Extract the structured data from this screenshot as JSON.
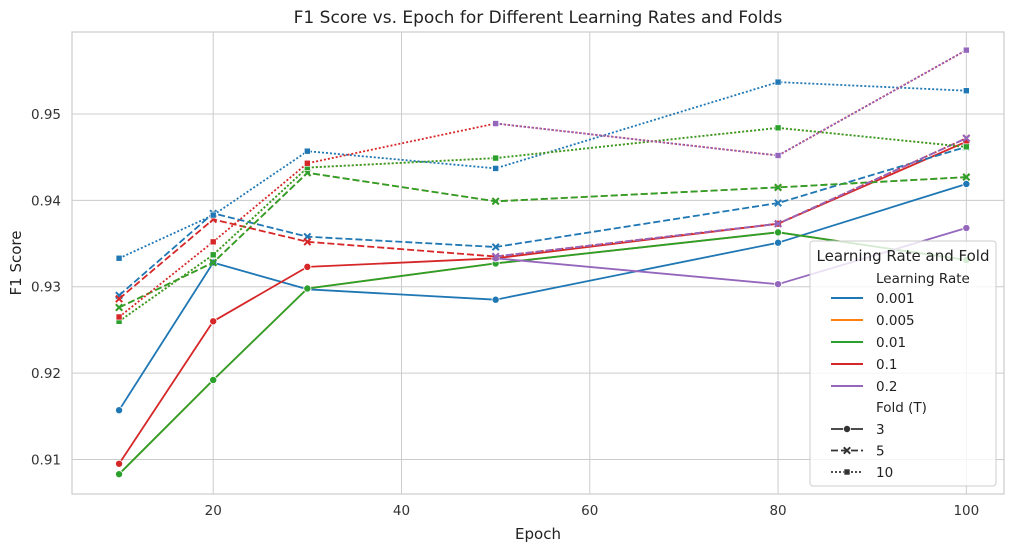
{
  "chart_data": {
    "type": "line",
    "title": "F1 Score vs. Epoch for Different Learning Rates and Folds",
    "xlabel": "Epoch",
    "ylabel": "F1 Score",
    "xlim": [
      5,
      104
    ],
    "ylim": [
      0.906,
      0.9595
    ],
    "xticks": [
      20,
      40,
      60,
      80,
      100
    ],
    "yticks": [
      0.91,
      0.92,
      0.93,
      0.94,
      0.95
    ],
    "grid": true,
    "x": [
      10,
      20,
      30,
      50,
      80,
      100
    ],
    "legend": {
      "title": "Learning Rate and Fold",
      "placement": "right",
      "hue_title": "Learning Rate",
      "style_title": "Fold (T)",
      "hue_entries": [
        {
          "label": "0.001",
          "color": "#1f77b4"
        },
        {
          "label": "0.005",
          "color": "#ff7f0e"
        },
        {
          "label": "0.01",
          "color": "#2ca02c"
        },
        {
          "label": "0.1",
          "color": "#d62728"
        },
        {
          "label": "0.2",
          "color": "#9467bd"
        }
      ],
      "style_entries": [
        {
          "label": "3",
          "dash": "solid",
          "marker": "circle"
        },
        {
          "label": "5",
          "dash": "dashed",
          "marker": "x"
        },
        {
          "label": "10",
          "dash": "dotted",
          "marker": "square"
        }
      ]
    },
    "series": [
      {
        "lr": "0.001",
        "fold": "3",
        "color": "#1f77b4",
        "dash": "solid",
        "marker": "circle",
        "values": [
          0.9157,
          0.9328,
          0.9297,
          0.9285,
          0.9351,
          0.9419
        ]
      },
      {
        "lr": "0.005",
        "fold": "3",
        "color": "#ff7f0e",
        "dash": "solid",
        "marker": "circle",
        "values": [
          0.9083,
          0.9192,
          0.9298,
          0.9327,
          0.9363,
          0.9331
        ]
      },
      {
        "lr": "0.01",
        "fold": "3",
        "color": "#2ca02c",
        "dash": "solid",
        "marker": "circle",
        "values": [
          0.9083,
          0.9192,
          0.9298,
          0.9327,
          0.9363,
          0.9331
        ]
      },
      {
        "lr": "0.1",
        "fold": "3",
        "color": "#d62728",
        "dash": "solid",
        "marker": "circle",
        "values": [
          0.9095,
          0.926,
          0.9323,
          0.9333,
          0.9373,
          0.9468
        ]
      },
      {
        "lr": "0.2",
        "fold": "3",
        "color": "#9467bd",
        "dash": "solid",
        "marker": "circle",
        "values": [
          null,
          null,
          null,
          0.9333,
          0.9303,
          0.9368
        ]
      },
      {
        "lr": "0.001",
        "fold": "5",
        "color": "#1f77b4",
        "dash": "dashed",
        "marker": "x",
        "values": [
          0.929,
          0.9385,
          0.9358,
          0.9346,
          0.9397,
          0.9462
        ]
      },
      {
        "lr": "0.005",
        "fold": "5",
        "color": "#ff7f0e",
        "dash": "dashed",
        "marker": "x",
        "values": [
          0.9276,
          0.9328,
          0.9432,
          0.9399,
          0.9415,
          0.9427
        ]
      },
      {
        "lr": "0.01",
        "fold": "5",
        "color": "#2ca02c",
        "dash": "dashed",
        "marker": "x",
        "values": [
          0.9276,
          0.9328,
          0.9432,
          0.9399,
          0.9415,
          0.9427
        ]
      },
      {
        "lr": "0.1",
        "fold": "5",
        "color": "#d62728",
        "dash": "dashed",
        "marker": "x",
        "values": [
          0.9286,
          0.9378,
          0.9352,
          0.9335,
          0.9373,
          0.9472
        ]
      },
      {
        "lr": "0.2",
        "fold": "5",
        "color": "#9467bd",
        "dash": "dashed",
        "marker": "x",
        "values": [
          null,
          null,
          null,
          0.9335,
          0.9373,
          0.9472
        ]
      },
      {
        "lr": "0.001",
        "fold": "10",
        "color": "#1f77b4",
        "dash": "dotted",
        "marker": "square",
        "values": [
          0.9333,
          0.9383,
          0.9457,
          0.9437,
          0.9537,
          0.9527
        ]
      },
      {
        "lr": "0.005",
        "fold": "10",
        "color": "#ff7f0e",
        "dash": "dotted",
        "marker": "square",
        "values": [
          0.926,
          0.9337,
          0.9438,
          0.9449,
          0.9484,
          0.9462
        ]
      },
      {
        "lr": "0.01",
        "fold": "10",
        "color": "#2ca02c",
        "dash": "dotted",
        "marker": "square",
        "values": [
          0.926,
          0.9337,
          0.9438,
          0.9449,
          0.9484,
          0.9462
        ]
      },
      {
        "lr": "0.1",
        "fold": "10",
        "color": "#d62728",
        "dash": "dotted",
        "marker": "square",
        "values": [
          0.9265,
          0.9352,
          0.9443,
          0.9489,
          0.9452,
          0.9574
        ]
      },
      {
        "lr": "0.2",
        "fold": "10",
        "color": "#9467bd",
        "dash": "dotted",
        "marker": "square",
        "values": [
          null,
          null,
          null,
          0.9489,
          0.9452,
          0.9574
        ]
      }
    ]
  }
}
